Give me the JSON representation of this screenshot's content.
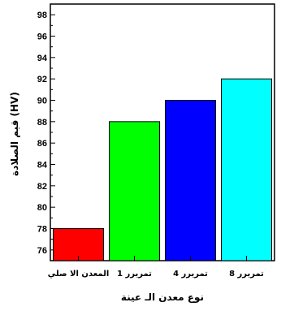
{
  "chart_data": {
    "type": "bar",
    "categories": [
      "المعدن الا صلي",
      "1 تمريرر",
      "4 تمريرر",
      "8 تمريرر"
    ],
    "values": [
      78,
      88,
      90,
      92
    ],
    "colors": [
      "#ff0000",
      "#00ff00",
      "#0000ff",
      "#00ffff"
    ],
    "ylabel": "قيم الصلادة (HV)",
    "xlabel": "نوع معدن الـ عينة",
    "ylim": [
      75,
      99
    ],
    "yticks": [
      76,
      78,
      80,
      82,
      84,
      86,
      88,
      90,
      92,
      94,
      96,
      98
    ],
    "grid": false,
    "legend": "none"
  }
}
